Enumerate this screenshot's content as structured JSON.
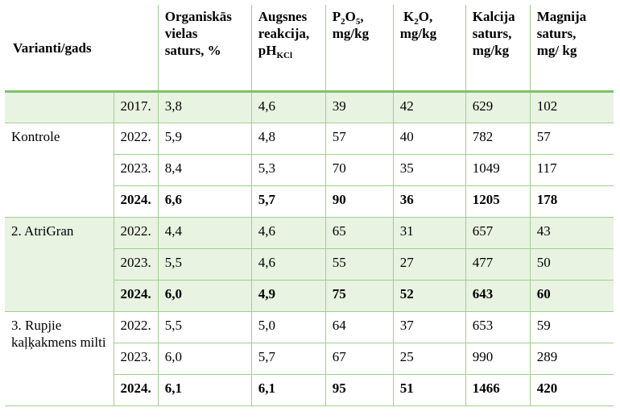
{
  "header": {
    "col0": "Varianti/gads",
    "col2": [
      "Organiskās",
      "vielas",
      "saturs, %"
    ],
    "col3": [
      "Augsnes",
      "reakcija,",
      "pH",
      "KCl"
    ],
    "col4": [
      "P",
      "2",
      "O",
      "5",
      ",",
      "mg/kg"
    ],
    "col5": [
      "K",
      "2",
      "O,",
      "mg/kg"
    ],
    "col6": [
      "Kalcija",
      "saturs,",
      "mg/kg"
    ],
    "col7": [
      "Magnija",
      "saturs,",
      "mg/ kg"
    ]
  },
  "rows": [
    {
      "variant": "",
      "year": "2017.",
      "values": [
        "3,8",
        "4,6",
        "39",
        "42",
        "629",
        "102"
      ]
    },
    {
      "variant": "Kontrole",
      "year": "2022.",
      "values": [
        "5,9",
        "4,8",
        "57",
        "40",
        "782",
        "57"
      ]
    },
    {
      "variant": "",
      "year": "2023.",
      "values": [
        "8,4",
        "5,3",
        "70",
        "35",
        "1049",
        "117"
      ]
    },
    {
      "variant": "",
      "year": "2024.",
      "values": [
        "6,6",
        "5,7",
        "90",
        "36",
        "1205",
        "178"
      ]
    },
    {
      "variant": "2. AtriGran",
      "year": "2022.",
      "values": [
        "4,4",
        "4,6",
        "65",
        "31",
        "657",
        "43"
      ]
    },
    {
      "variant": "",
      "year": "2023.",
      "values": [
        "5,5",
        "4,6",
        "55",
        "27",
        "477",
        "50"
      ]
    },
    {
      "variant": "",
      "year": "2024.",
      "values": [
        "6,0",
        "4,9",
        "75",
        "52",
        "643",
        "60"
      ]
    },
    {
      "variant": "3. Rupjie kaļķakmens milti",
      "year": "2022.",
      "values": [
        "5,5",
        "5,0",
        "64",
        "37",
        "653",
        "59"
      ]
    },
    {
      "variant": "",
      "year": "2023.",
      "values": [
        "6,0",
        "5,7",
        "67",
        "25",
        "990",
        "289"
      ]
    },
    {
      "variant": "",
      "year": "2024.",
      "values": [
        "6,1",
        "6,1",
        "95",
        "51",
        "1466",
        "420"
      ]
    }
  ]
}
